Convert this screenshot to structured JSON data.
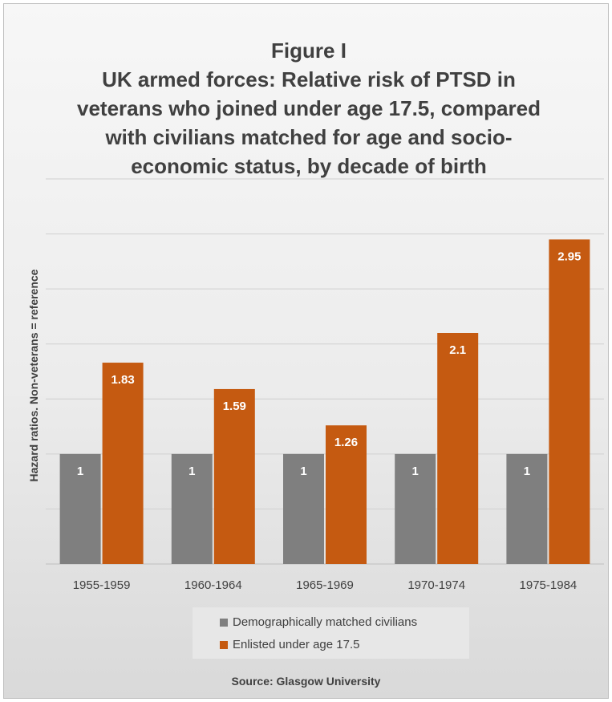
{
  "chart_data": {
    "type": "bar",
    "title_lines": [
      "Figure I",
      "UK armed forces: Relative risk of PTSD in",
      "veterans who joined under age 17.5, compared",
      "with civilians matched for age and socio-",
      "economic status, by decade of birth"
    ],
    "ylabel": "Hazard ratios. Non-veterans = reference",
    "categories": [
      "1955-1959",
      "1960-1964",
      "1965-1969",
      "1970-1974",
      "1975-1984"
    ],
    "series": [
      {
        "name": "Demographically matched civilians",
        "color": "#7f7f7f",
        "values": [
          1,
          1,
          1,
          1,
          1
        ]
      },
      {
        "name": "Enlisted under age 17.5",
        "color": "#c55a11",
        "values": [
          1.83,
          1.59,
          1.26,
          2.1,
          2.95
        ]
      }
    ],
    "ylim": [
      0,
      3.5
    ],
    "grid": true,
    "legend_position": "bottom",
    "source": "Source: Glasgow University"
  }
}
